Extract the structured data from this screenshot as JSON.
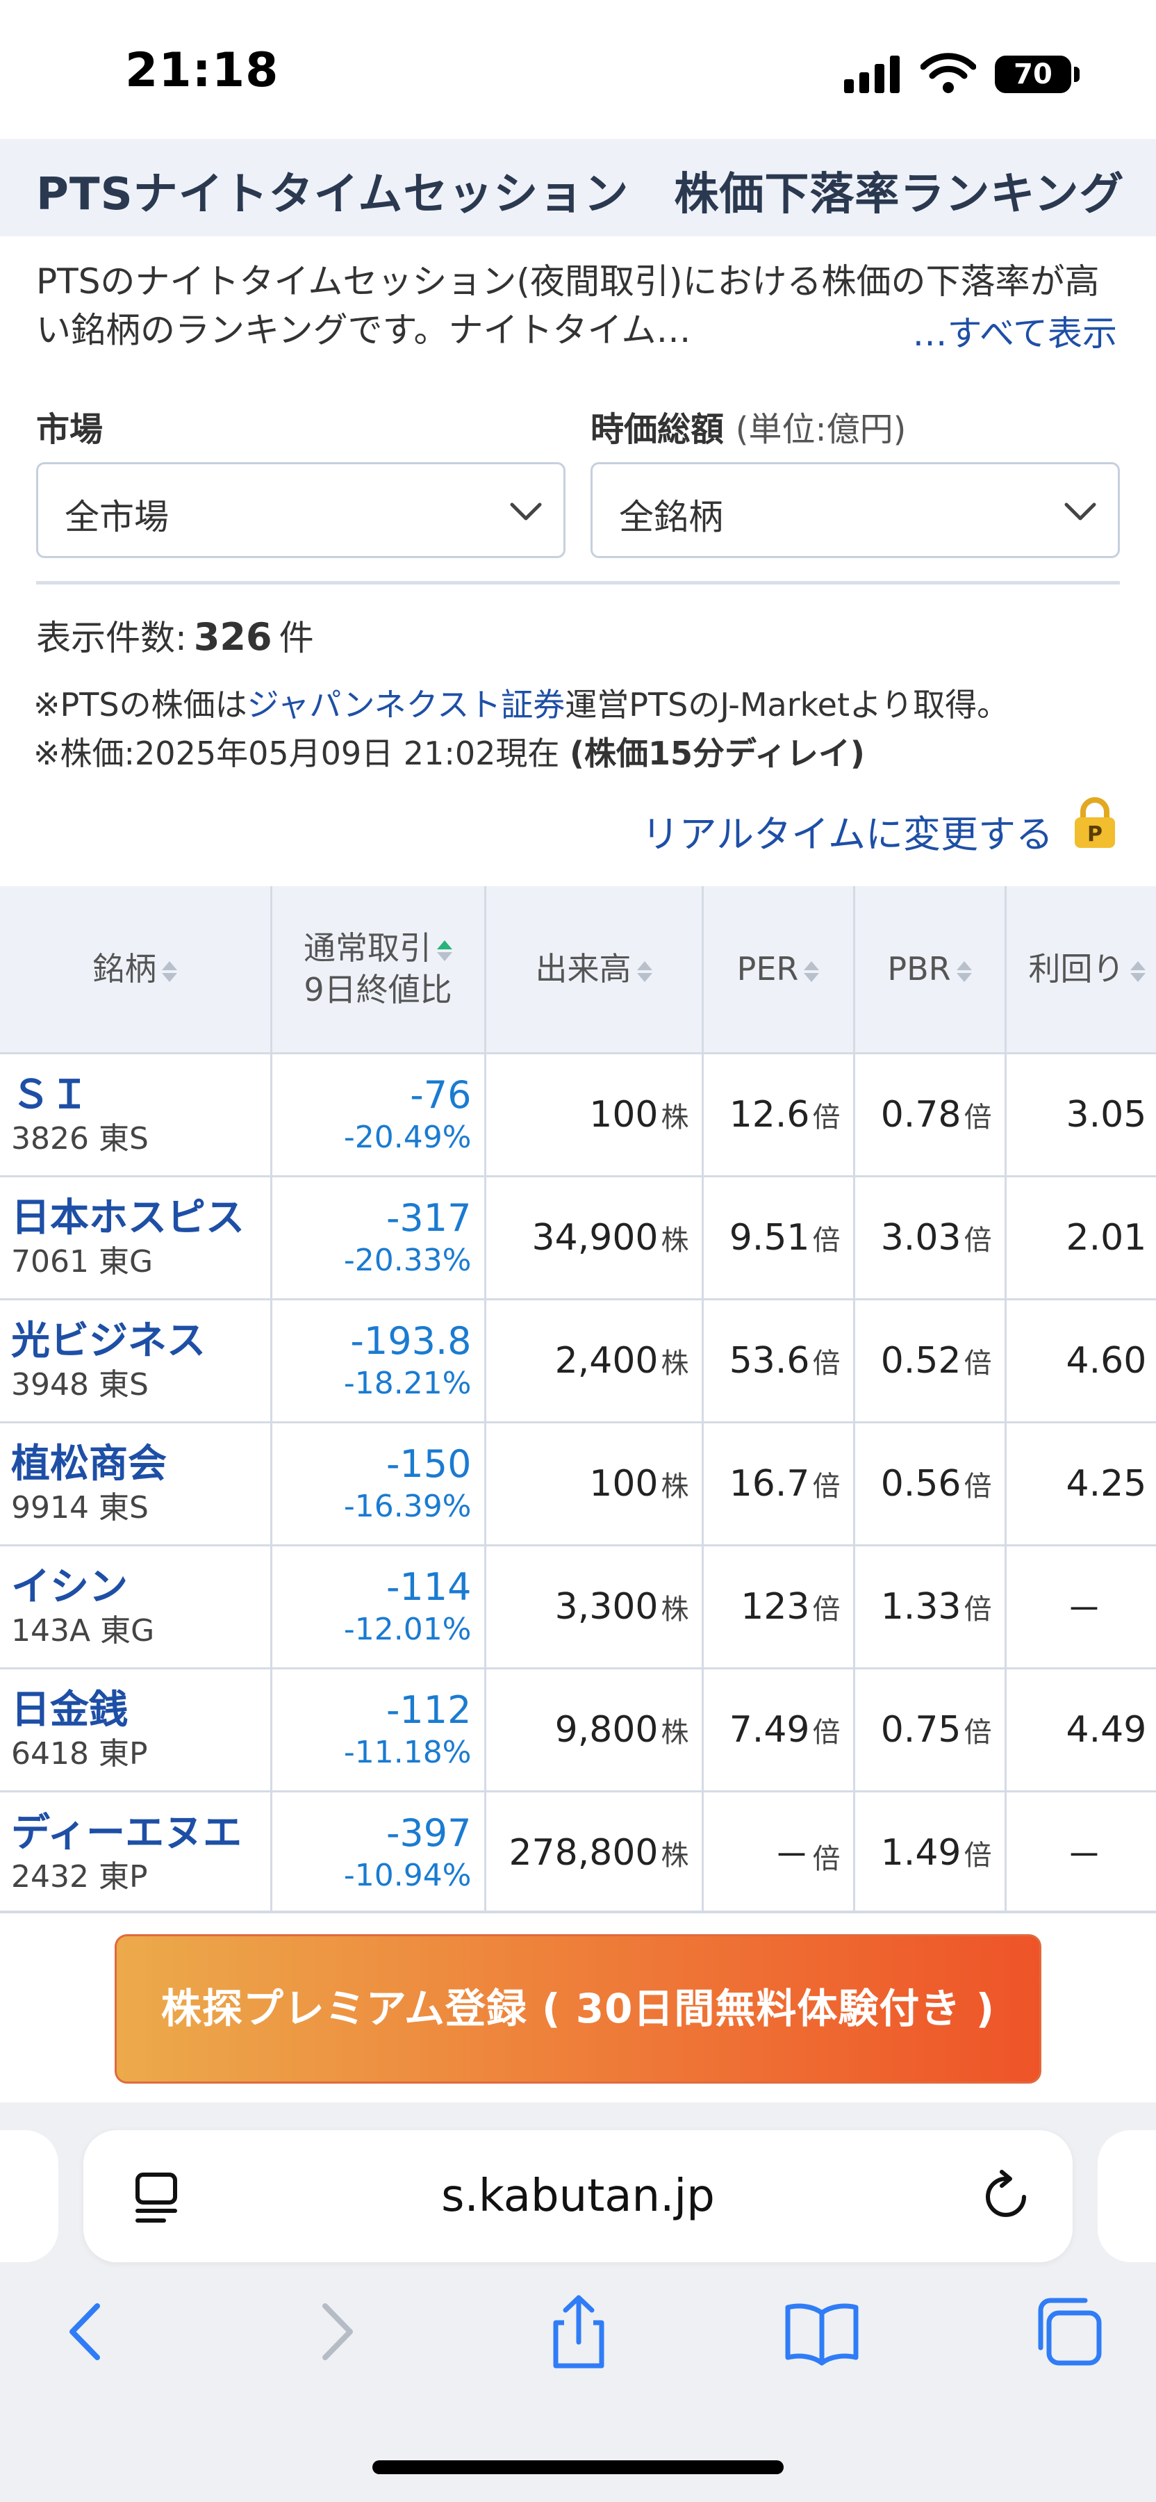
{
  "status_bar": {
    "time": "21:18",
    "battery": "70"
  },
  "header": {
    "title": "PTSナイトタイムセッション　株価下落率ランキング"
  },
  "description": {
    "text": "PTSのナイトタイムセッション(夜間取引)における株価の下落率が高い銘柄のランキングです。ナイトタイム…",
    "show_all": "…すべて表示"
  },
  "filters": {
    "market_label": "市場",
    "market_value": "全市場",
    "cap_label": "時価総額",
    "cap_unit": "(単位:億円)",
    "cap_value": "全銘柄"
  },
  "count": {
    "label": "表示件数:",
    "value": "326",
    "unit": "件"
  },
  "notes": {
    "line1_prefix": "※PTSの株価は",
    "line1_link": "ジャパンネクスト証券",
    "line1_suffix": "運営PTSのJ-Marketより取得。",
    "line2_prefix": "※株価:2025年05月09日 21:02現在",
    "line2_bold": "(株価15分ディレイ)"
  },
  "realtime_link": "リアルタイムに変更する",
  "table": {
    "headers": {
      "name": "銘柄",
      "change_line1": "通常取引",
      "change_line2": "9日終値比",
      "volume": "出来高",
      "per": "PER",
      "pbr": "PBR",
      "yield": "利回り"
    },
    "units": {
      "shares": "株",
      "times": "倍"
    },
    "rows": [
      {
        "name": "ＳＩ",
        "code": "3826",
        "market": "東S",
        "change": "-76",
        "pct": "-20.49%",
        "volume": "100",
        "per": "12.6",
        "pbr": "0.78",
        "yield": "3.05"
      },
      {
        "name": "日本ホスピス",
        "code": "7061",
        "market": "東G",
        "change": "-317",
        "pct": "-20.33%",
        "volume": "34,900",
        "per": "9.51",
        "pbr": "3.03",
        "yield": "2.01"
      },
      {
        "name": "光ビジネス",
        "code": "3948",
        "market": "東S",
        "change": "-193.8",
        "pct": "-18.21%",
        "volume": "2,400",
        "per": "53.6",
        "pbr": "0.52",
        "yield": "4.60"
      },
      {
        "name": "植松商会",
        "code": "9914",
        "market": "東S",
        "change": "-150",
        "pct": "-16.39%",
        "volume": "100",
        "per": "16.7",
        "pbr": "0.56",
        "yield": "4.25"
      },
      {
        "name": "イシン",
        "code": "143A",
        "market": "東G",
        "change": "-114",
        "pct": "-12.01%",
        "volume": "3,300",
        "per": "123",
        "pbr": "1.33",
        "yield": "－"
      },
      {
        "name": "日金銭",
        "code": "6418",
        "market": "東P",
        "change": "-112",
        "pct": "-11.18%",
        "volume": "9,800",
        "per": "7.49",
        "pbr": "0.75",
        "yield": "4.49"
      },
      {
        "name": "ディーエヌエ",
        "code": "2432",
        "market": "東P",
        "change": "-397",
        "pct": "-10.94%",
        "volume": "278,800",
        "per": "－",
        "pbr": "1.49",
        "yield": "－"
      }
    ]
  },
  "premium_button": "株探プレミアム登録 ( 30日間無料体験付き )",
  "browser": {
    "url": "s.kabutan.jp"
  },
  "colors": {
    "link": "#1e4fa6",
    "negative": "#1a7bd1",
    "accent_orange": "#ee7a38",
    "ios_blue": "#2f7cf6"
  }
}
